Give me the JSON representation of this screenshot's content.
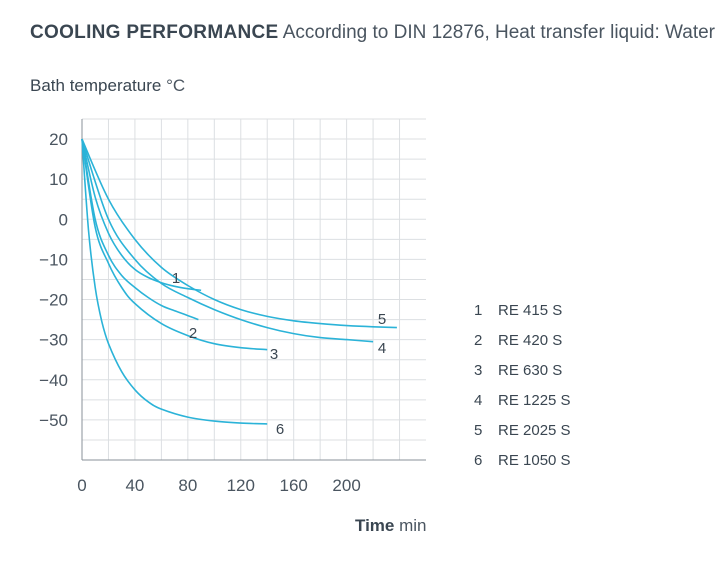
{
  "header": {
    "title_bold": "COOLING PERFORMANCE",
    "title_rest": "According to DIN 12876, Heat transfer liquid: Water",
    "ylabel": "Bath temperature",
    "ylabel_unit": "°C",
    "xlabel": "Time",
    "xlabel_unit": "min"
  },
  "chart_data": {
    "type": "line",
    "title": "COOLING PERFORMANCE According to DIN 12876, Heat transfer liquid: Water",
    "xlabel": "Time min",
    "ylabel": "Bath temperature °C",
    "xlim": [
      0,
      260
    ],
    "ylim": [
      -60,
      25
    ],
    "x_ticks": [
      0,
      40,
      80,
      120,
      160,
      200
    ],
    "y_ticks": [
      20,
      10,
      0,
      -10,
      -20,
      -30,
      -40,
      -50
    ],
    "grid": true,
    "legend_position": "right",
    "line_color": "#2bb3d8",
    "series": [
      {
        "label": "1",
        "name": "RE 415 S",
        "x": [
          0,
          10,
          20,
          30,
          40,
          50,
          60,
          70,
          80,
          90
        ],
        "y": [
          20,
          5.5,
          -3.5,
          -9,
          -12.5,
          -14.5,
          -15.8,
          -16.7,
          -17.3,
          -17.7
        ]
      },
      {
        "label": "2",
        "name": "RE 420 S",
        "x": [
          0,
          10,
          20,
          30,
          40,
          50,
          60,
          70,
          80,
          88
        ],
        "y": [
          20,
          0,
          -9,
          -14,
          -17,
          -19.5,
          -21.5,
          -22.8,
          -24,
          -25
        ]
      },
      {
        "label": "3",
        "name": "RE 630 S",
        "x": [
          0,
          10,
          20,
          30,
          40,
          60,
          80,
          100,
          120,
          140
        ],
        "y": [
          20,
          -2,
          -11,
          -17,
          -21,
          -26,
          -29,
          -31,
          -32,
          -32.5
        ]
      },
      {
        "label": "4",
        "name": "RE 1225 S",
        "x": [
          0,
          20,
          40,
          60,
          80,
          100,
          120,
          140,
          160,
          180,
          200,
          220
        ],
        "y": [
          20,
          0,
          -10,
          -16,
          -19.5,
          -22.5,
          -25,
          -27,
          -28.5,
          -29.5,
          -30,
          -30.5
        ]
      },
      {
        "label": "5",
        "name": "RE 2025 S",
        "x": [
          0,
          20,
          40,
          60,
          80,
          100,
          120,
          140,
          160,
          180,
          200,
          220,
          238
        ],
        "y": [
          20,
          5,
          -5,
          -12,
          -16.5,
          -20,
          -22.5,
          -24.2,
          -25.3,
          -26,
          -26.5,
          -26.8,
          -27
        ]
      },
      {
        "label": "6",
        "name": "RE 1050 S",
        "x": [
          0,
          5,
          10,
          15,
          20,
          30,
          40,
          50,
          60,
          80,
          100,
          120,
          140
        ],
        "y": [
          20,
          -3,
          -17,
          -25.5,
          -31,
          -38,
          -42.5,
          -45.5,
          -47.3,
          -49.3,
          -50.3,
          -50.8,
          -51
        ]
      }
    ]
  }
}
